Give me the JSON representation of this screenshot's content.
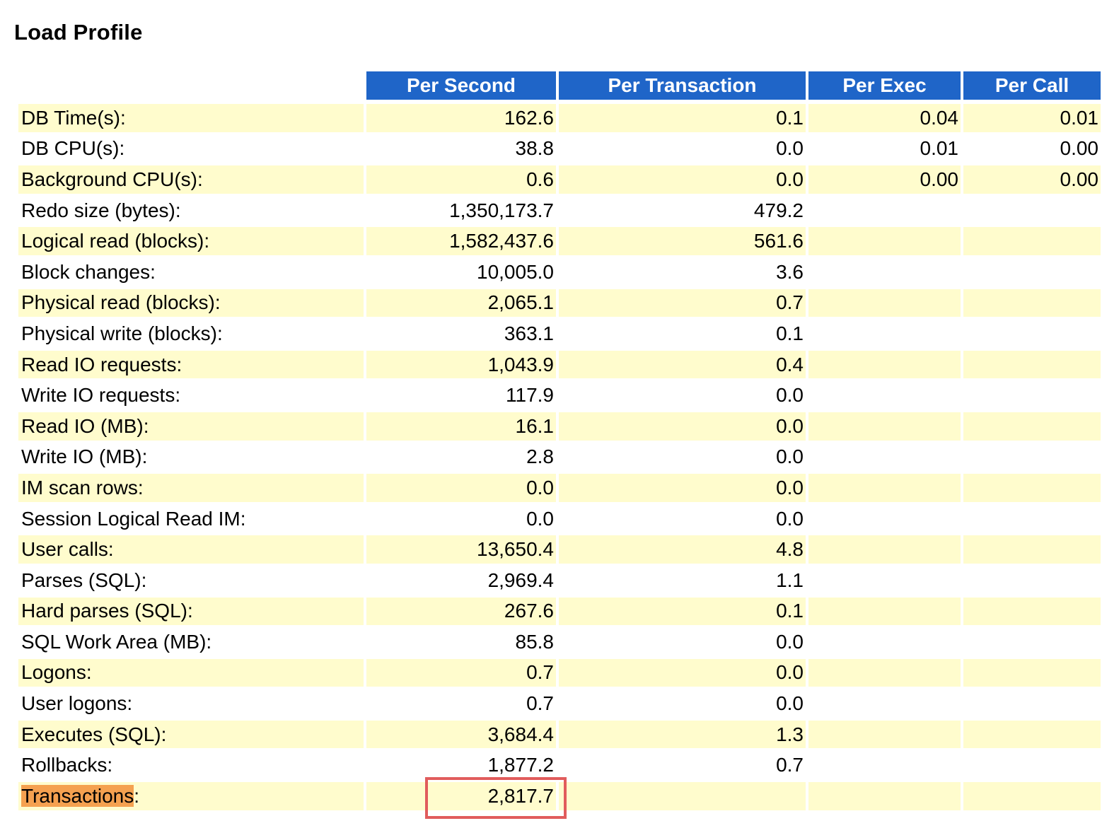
{
  "title": "Load Profile",
  "columns": [
    "Per Second",
    "Per Transaction",
    "Per Exec",
    "Per Call"
  ],
  "rows": [
    {
      "label": "DB Time(s):",
      "per_second": "162.6",
      "per_transaction": "0.1",
      "per_exec": "0.04",
      "per_call": "0.01"
    },
    {
      "label": "DB CPU(s):",
      "per_second": "38.8",
      "per_transaction": "0.0",
      "per_exec": "0.01",
      "per_call": "0.00"
    },
    {
      "label": "Background CPU(s):",
      "per_second": "0.6",
      "per_transaction": "0.0",
      "per_exec": "0.00",
      "per_call": "0.00"
    },
    {
      "label": "Redo size (bytes):",
      "per_second": "1,350,173.7",
      "per_transaction": "479.2",
      "per_exec": "",
      "per_call": ""
    },
    {
      "label": "Logical read (blocks):",
      "per_second": "1,582,437.6",
      "per_transaction": "561.6",
      "per_exec": "",
      "per_call": ""
    },
    {
      "label": "Block changes:",
      "per_second": "10,005.0",
      "per_transaction": "3.6",
      "per_exec": "",
      "per_call": ""
    },
    {
      "label": "Physical read (blocks):",
      "per_second": "2,065.1",
      "per_transaction": "0.7",
      "per_exec": "",
      "per_call": ""
    },
    {
      "label": "Physical write (blocks):",
      "per_second": "363.1",
      "per_transaction": "0.1",
      "per_exec": "",
      "per_call": ""
    },
    {
      "label": "Read IO requests:",
      "per_second": "1,043.9",
      "per_transaction": "0.4",
      "per_exec": "",
      "per_call": ""
    },
    {
      "label": "Write IO requests:",
      "per_second": "117.9",
      "per_transaction": "0.0",
      "per_exec": "",
      "per_call": ""
    },
    {
      "label": "Read IO (MB):",
      "per_second": "16.1",
      "per_transaction": "0.0",
      "per_exec": "",
      "per_call": ""
    },
    {
      "label": "Write IO (MB):",
      "per_second": "2.8",
      "per_transaction": "0.0",
      "per_exec": "",
      "per_call": ""
    },
    {
      "label": "IM scan rows:",
      "per_second": "0.0",
      "per_transaction": "0.0",
      "per_exec": "",
      "per_call": ""
    },
    {
      "label": "Session Logical Read IM:",
      "per_second": "0.0",
      "per_transaction": "0.0",
      "per_exec": "",
      "per_call": ""
    },
    {
      "label": "User calls:",
      "per_second": "13,650.4",
      "per_transaction": "4.8",
      "per_exec": "",
      "per_call": ""
    },
    {
      "label": "Parses (SQL):",
      "per_second": "2,969.4",
      "per_transaction": "1.1",
      "per_exec": "",
      "per_call": ""
    },
    {
      "label": "Hard parses (SQL):",
      "per_second": "267.6",
      "per_transaction": "0.1",
      "per_exec": "",
      "per_call": ""
    },
    {
      "label": "SQL Work Area (MB):",
      "per_second": "85.8",
      "per_transaction": "0.0",
      "per_exec": "",
      "per_call": ""
    },
    {
      "label": "Logons:",
      "per_second": "0.7",
      "per_transaction": "0.0",
      "per_exec": "",
      "per_call": ""
    },
    {
      "label": "User logons:",
      "per_second": "0.7",
      "per_transaction": "0.0",
      "per_exec": "",
      "per_call": ""
    },
    {
      "label": "Executes (SQL):",
      "per_second": "3,684.4",
      "per_transaction": "1.3",
      "per_exec": "",
      "per_call": ""
    },
    {
      "label": "Rollbacks:",
      "per_second": "1,877.2",
      "per_transaction": "0.7",
      "per_exec": "",
      "per_call": ""
    }
  ],
  "last_row": {
    "label_highlight": "Transactions",
    "label_suffix": ":",
    "per_second": "2,817.7",
    "per_transaction": "",
    "per_exec": "",
    "per_call": ""
  },
  "colors": {
    "header_bg": "#1f65c8",
    "stripe_bg": "#fffccd",
    "label_highlight": "#f5a150",
    "annotation_box": "#e15c5c"
  }
}
